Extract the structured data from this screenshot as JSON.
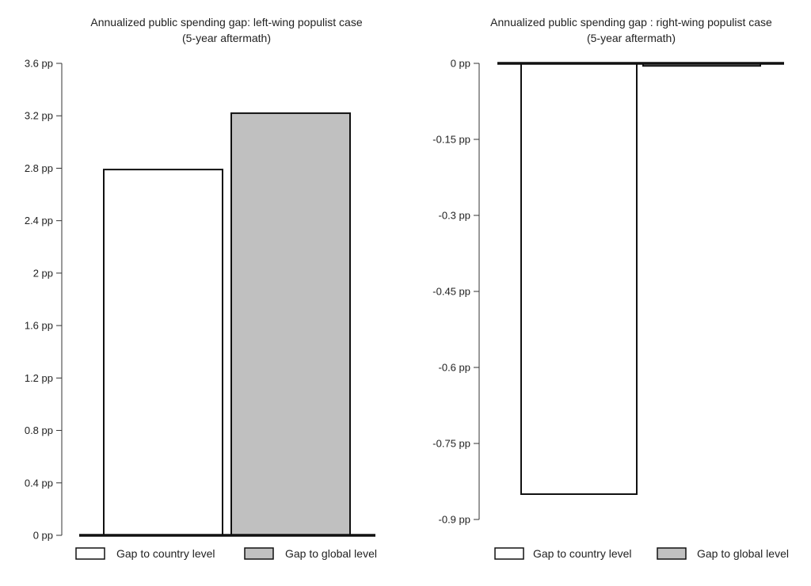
{
  "chart_data": [
    {
      "type": "bar",
      "title": "Annualized public spending gap: left-wing populist case",
      "subtitle": "(5-year aftermath)",
      "categories": [
        "Gap to country level",
        "Gap to global level"
      ],
      "values": [
        2.79,
        3.22
      ],
      "ylim": [
        0,
        3.6
      ],
      "yticks": [
        "0 pp",
        "0.4 pp",
        "0.8 pp",
        "1.2 pp",
        "1.6 pp",
        "2 pp",
        "2.4 pp",
        "2.8 pp",
        "3.2 pp",
        "3.6 pp"
      ],
      "ytick_values": [
        0,
        0.4,
        0.8,
        1.2,
        1.6,
        2.0,
        2.4,
        2.8,
        3.2,
        3.6
      ],
      "xlabel": "",
      "ylabel": "",
      "grid": false,
      "legend": {
        "position": "bottom",
        "entries": [
          {
            "label": "Gap to country level",
            "color": "#ffffff"
          },
          {
            "label": "Gap to global level",
            "color": "#c0c0c0"
          }
        ]
      }
    },
    {
      "type": "bar",
      "title": "Annualized public spending gap : right-wing populist case",
      "subtitle": "(5-year aftermath)",
      "categories": [
        "Gap to country level",
        "Gap to global level"
      ],
      "values": [
        -0.85,
        -0.005
      ],
      "ylim": [
        -0.9,
        0
      ],
      "yticks": [
        "-0.9 pp",
        "-0.75 pp",
        "-0.6 pp",
        "-0.45 pp",
        "-0.3 pp",
        "-0.15 pp",
        "0 pp"
      ],
      "ytick_values": [
        -0.9,
        -0.75,
        -0.6,
        -0.45,
        -0.3,
        -0.15,
        0
      ],
      "xlabel": "",
      "ylabel": "",
      "grid": false,
      "legend": {
        "position": "bottom",
        "entries": [
          {
            "label": "Gap to country level",
            "color": "#ffffff"
          },
          {
            "label": "Gap to global level",
            "color": "#c0c0c0"
          }
        ]
      }
    }
  ]
}
